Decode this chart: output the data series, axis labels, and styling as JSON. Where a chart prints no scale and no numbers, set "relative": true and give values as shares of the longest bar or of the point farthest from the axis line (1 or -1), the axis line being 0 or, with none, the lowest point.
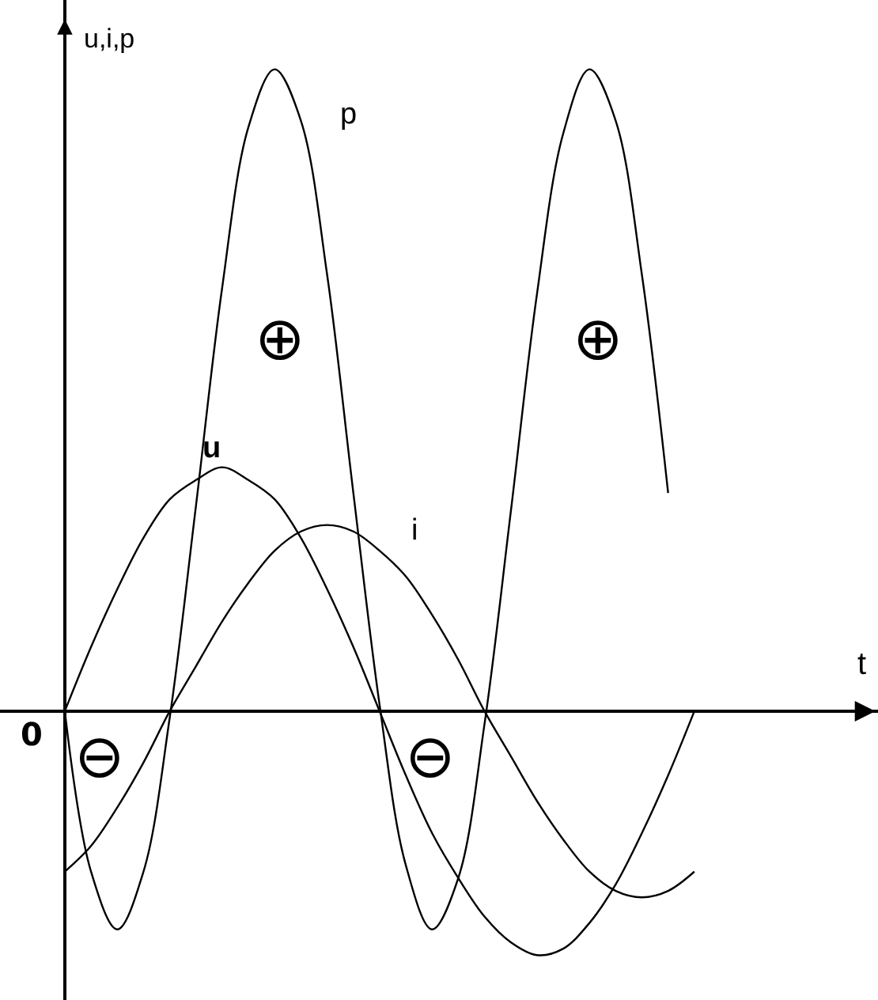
{
  "chart_data": {
    "type": "line",
    "relative": true,
    "xlabel": "t",
    "ylabel": "u,i,p",
    "categories": [
      null,
      null,
      null,
      null,
      null,
      null,
      null,
      null,
      null,
      null,
      null,
      null,
      null,
      null,
      null,
      null,
      null,
      null,
      null,
      null,
      null,
      null,
      null,
      null,
      null
    ],
    "series": [
      {
        "name": "u",
        "color": "#000000",
        "values": [
          0,
          0.1,
          0.19,
          0.27,
          0.33,
          0.36,
          0.38,
          0.36,
          0.33,
          0.27,
          0.19,
          0.1,
          0,
          -0.1,
          -0.19,
          -0.26,
          -0.32,
          -0.36,
          -0.38,
          -0.37,
          -0.33,
          -0.27,
          -0.19,
          -0.1,
          0
        ]
      },
      {
        "name": "i",
        "color": "#000000",
        "values": [
          -0.25,
          -0.21,
          -0.15,
          -0.08,
          0,
          0.07,
          0.14,
          0.2,
          0.25,
          0.28,
          0.29,
          0.28,
          0.25,
          0.21,
          0.15,
          0.08,
          0,
          -0.07,
          -0.14,
          -0.2,
          -0.25,
          -0.28,
          -0.29,
          -0.28,
          -0.25
        ]
      },
      {
        "name": "p",
        "color": "#000000",
        "values": [
          0,
          -0.25,
          -0.34,
          -0.25,
          -0.01,
          0.32,
          0.66,
          0.91,
          1,
          0.92,
          0.68,
          0.34,
          0.01,
          -0.24,
          -0.34,
          -0.26,
          -0.02,
          0.31,
          0.65,
          0.9,
          1,
          0.92,
          0.68,
          0.34,
          null
        ]
      }
    ],
    "annotations": [
      "0",
      "⊕",
      "⊕",
      "⊖",
      "⊖"
    ]
  }
}
